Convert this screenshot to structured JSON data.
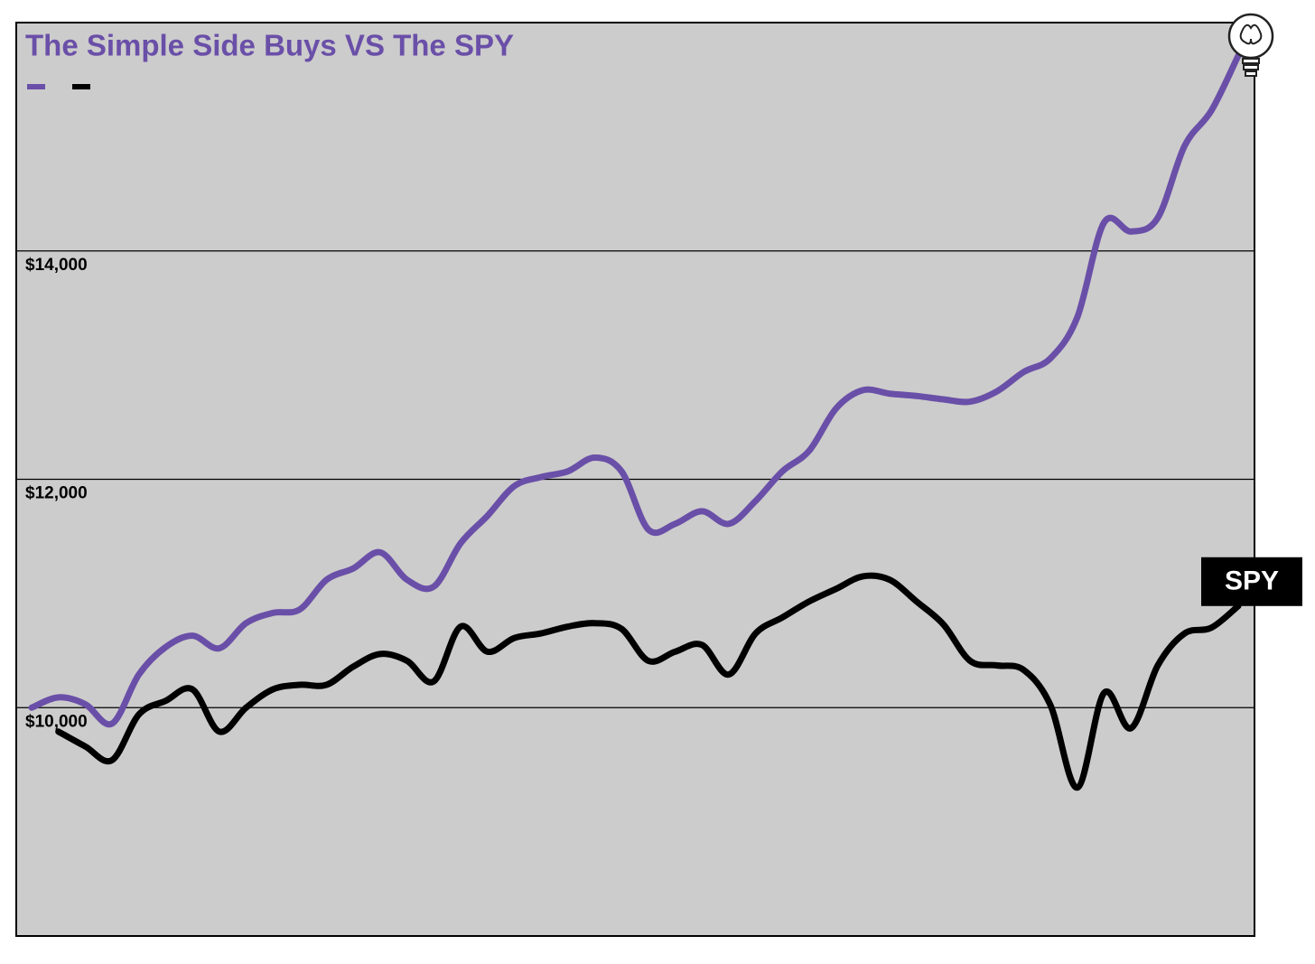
{
  "chart_data": {
    "type": "line",
    "title": "The Simple Side Buys VS The SPY",
    "ylim": [
      8000,
      16000
    ],
    "yticks": [
      {
        "value": 10000,
        "label": "$10,000"
      },
      {
        "value": 12000,
        "label": "$12,000"
      },
      {
        "value": 14000,
        "label": "$14,000"
      }
    ],
    "grid": true,
    "legend": "upper left",
    "series": [
      {
        "color": "#6a4fa8",
        "values": [
          10000,
          10090,
          10030,
          9860,
          10290,
          10530,
          10630,
          10520,
          10740,
          10830,
          10860,
          11120,
          11220,
          11360,
          11120,
          11060,
          11440,
          11680,
          11940,
          12020,
          12070,
          12190,
          12070,
          11560,
          11610,
          11720,
          11610,
          11810,
          12070,
          12250,
          12620,
          12780,
          12750,
          12730,
          12700,
          12680,
          12770,
          12940,
          13060,
          13420,
          14250,
          14170,
          14290,
          14920,
          15230,
          15710
        ]
      },
      {
        "name": "SPY",
        "color": "#000000",
        "values": [
          null,
          9790,
          9660,
          9540,
          9940,
          10060,
          10160,
          9790,
          10000,
          10160,
          10200,
          10200,
          10360,
          10470,
          10410,
          10230,
          10710,
          10490,
          10610,
          10650,
          10710,
          10740,
          10690,
          10410,
          10490,
          10550,
          10290,
          10650,
          10790,
          10930,
          11040,
          11150,
          11120,
          10930,
          10730,
          10410,
          10370,
          10330,
          10020,
          9300,
          10130,
          9820,
          10370,
          10650,
          10700,
          10890
        ]
      }
    ]
  }
}
